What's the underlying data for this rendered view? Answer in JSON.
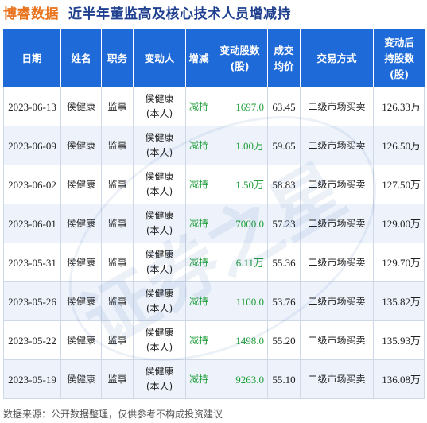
{
  "header": {
    "brand": "博睿数据",
    "title": "近半年董监高及核心技术人员增减持"
  },
  "table": {
    "columns": [
      [
        "日期"
      ],
      [
        "姓名"
      ],
      [
        "职务"
      ],
      [
        "变动人"
      ],
      [
        "增减"
      ],
      [
        "变动股数",
        "(股)"
      ],
      [
        "成交",
        "均价"
      ],
      [
        "交易方式"
      ],
      [
        "变动后",
        "持股数",
        "(股)"
      ]
    ],
    "rows": [
      {
        "date": "2023-06-13",
        "name": "侯健康",
        "position": "监事",
        "changer": [
          "侯健康",
          "(本人)"
        ],
        "direction": "减持",
        "shares": "1697.0",
        "price": "63.45",
        "method": "二级市场买卖",
        "after": "126.33万"
      },
      {
        "date": "2023-06-09",
        "name": "侯健康",
        "position": "监事",
        "changer": [
          "侯健康",
          "(本人)"
        ],
        "direction": "减持",
        "shares": "1.00万",
        "price": "59.65",
        "method": "二级市场买卖",
        "after": "126.50万"
      },
      {
        "date": "2023-06-02",
        "name": "侯健康",
        "position": "监事",
        "changer": [
          "侯健康",
          "(本人)"
        ],
        "direction": "减持",
        "shares": "1.50万",
        "price": "58.83",
        "method": "二级市场买卖",
        "after": "127.50万"
      },
      {
        "date": "2023-06-01",
        "name": "侯健康",
        "position": "监事",
        "changer": [
          "侯健康",
          "(本人)"
        ],
        "direction": "减持",
        "shares": "7000.0",
        "price": "57.23",
        "method": "二级市场买卖",
        "after": "129.00万"
      },
      {
        "date": "2023-05-31",
        "name": "侯健康",
        "position": "监事",
        "changer": [
          "侯健康",
          "(本人)"
        ],
        "direction": "减持",
        "shares": "6.11万",
        "price": "55.36",
        "method": "二级市场买卖",
        "after": "129.70万"
      },
      {
        "date": "2023-05-26",
        "name": "侯健康",
        "position": "监事",
        "changer": [
          "侯健康",
          "(本人)"
        ],
        "direction": "减持",
        "shares": "1100.0",
        "price": "53.76",
        "method": "二级市场买卖",
        "after": "135.82万"
      },
      {
        "date": "2023-05-22",
        "name": "侯健康",
        "position": "监事",
        "changer": [
          "侯健康",
          "(本人)"
        ],
        "direction": "减持",
        "shares": "1498.0",
        "price": "55.20",
        "method": "二级市场买卖",
        "after": "135.93万"
      },
      {
        "date": "2023-05-19",
        "name": "侯健康",
        "position": "监事",
        "changer": [
          "侯健康",
          "(本人)"
        ],
        "direction": "减持",
        "shares": "9263.0",
        "price": "55.10",
        "method": "二级市场买卖",
        "after": "136.08万"
      }
    ]
  },
  "footer": {
    "source": "数据来源：公开数据整理，仅供参考不构成投资建议"
  },
  "watermark": {
    "text": "证券之星"
  },
  "colors": {
    "brand": "#e8731c",
    "title": "#1f3f8f",
    "header_bg": "#1d6ad8",
    "decrease": "#1e9e3a",
    "row_alt": "#eef3fb"
  }
}
